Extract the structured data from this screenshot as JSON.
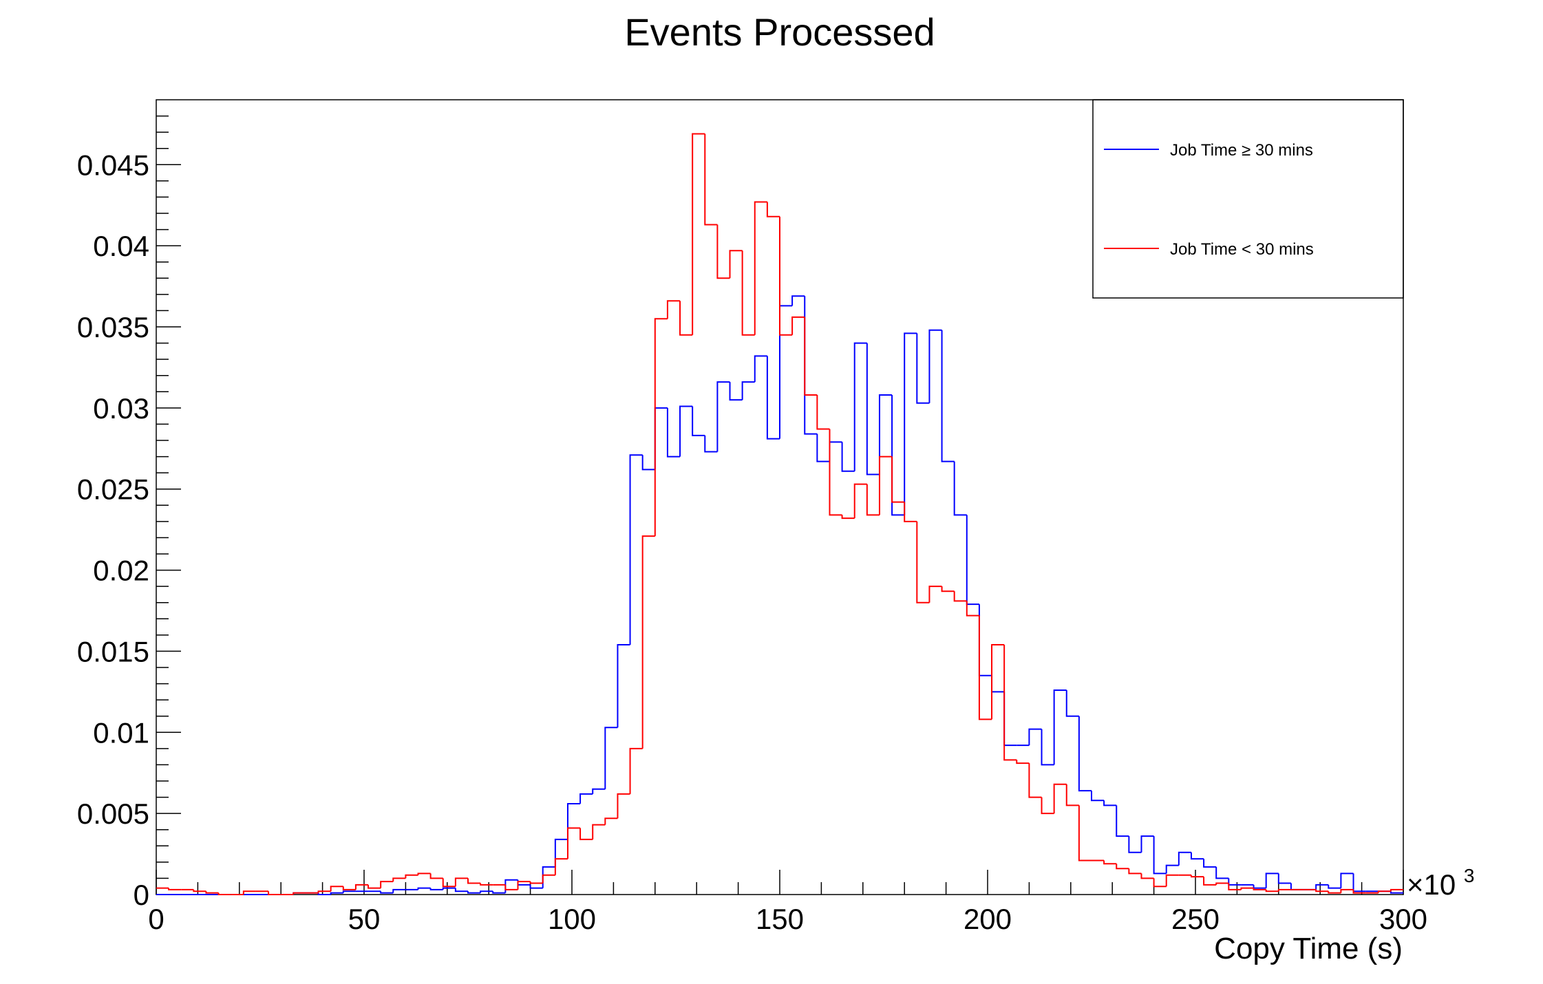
{
  "chart_data": {
    "type": "histogram",
    "title": "Events Processed",
    "xlabel": "Copy Time (s)",
    "ylabel": "",
    "x_multiplier": "×10",
    "x_multiplier_exp": "3",
    "xlim": [
      0,
      300
    ],
    "ylim": [
      0,
      0.049
    ],
    "x_bin_width": 3,
    "x_ticks": [
      "0",
      "50",
      "100",
      "150",
      "200",
      "250",
      "300"
    ],
    "x_tick_values": [
      0,
      50,
      100,
      150,
      200,
      250,
      300
    ],
    "y_ticks": [
      "0",
      "0.005",
      "0.01",
      "0.015",
      "0.02",
      "0.025",
      "0.03",
      "0.035",
      "0.04",
      "0.045"
    ],
    "y_tick_values": [
      0,
      0.005,
      0.01,
      0.015,
      0.02,
      0.025,
      0.03,
      0.035,
      0.04,
      0.045
    ],
    "legend_position": "top-right",
    "grid": false,
    "series": [
      {
        "name": "Job Time ≥ 30 mins",
        "color": "#0000ff",
        "values": [
          0,
          0,
          0,
          0,
          0,
          0,
          0,
          0,
          0,
          0,
          0,
          0.0001,
          0.0001,
          0,
          0.0001,
          0.0002,
          0.0002,
          0.0002,
          0.0001,
          0.0003,
          0.0003,
          0.0004,
          0.0003,
          0.0004,
          0.0002,
          0.0001,
          0.0002,
          0.0001,
          0.0009,
          0.0006,
          0.0004,
          0.0017,
          0.0034,
          0.0056,
          0.0062,
          0.0065,
          0.0103,
          0.0154,
          0.0271,
          0.0262,
          0.03,
          0.027,
          0.0301,
          0.0283,
          0.0273,
          0.0316,
          0.0305,
          0.0316,
          0.0332,
          0.0281,
          0.0363,
          0.0369,
          0.0284,
          0.0267,
          0.0279,
          0.0261,
          0.034,
          0.0259,
          0.0308,
          0.0234,
          0.0346,
          0.0303,
          0.0348,
          0.0267,
          0.0234,
          0.0179,
          0.0135,
          0.0125,
          0.0092,
          0.0092,
          0.0102,
          0.008,
          0.0126,
          0.011,
          0.0064,
          0.0058,
          0.0055,
          0.0036,
          0.0026,
          0.0036,
          0.0013,
          0.0018,
          0.0026,
          0.0022,
          0.0017,
          0.001,
          0.0006,
          0.0006,
          0.0004,
          0.0013,
          0.0007,
          0.0003,
          0.0003,
          0.0006,
          0.0004,
          0.0013,
          0.0002,
          0.0002,
          0.0002,
          0.0001
        ]
      },
      {
        "name": "Job Time < 30 mins",
        "color": "#ff0000",
        "values": [
          0.0004,
          0.0003,
          0.0003,
          0.0002,
          0.0001,
          0,
          0,
          0.0002,
          0.0002,
          0,
          0,
          0.0001,
          0.0001,
          0.0002,
          0.0005,
          0.0003,
          0.0006,
          0.0004,
          0.0008,
          0.001,
          0.0012,
          0.0013,
          0.001,
          0.0005,
          0.001,
          0.0007,
          0.0006,
          0.0006,
          0.0003,
          0.0008,
          0.0007,
          0.0012,
          0.0022,
          0.0041,
          0.0034,
          0.0043,
          0.0047,
          0.0062,
          0.009,
          0.0221,
          0.0355,
          0.0366,
          0.0345,
          0.0469,
          0.0413,
          0.038,
          0.0397,
          0.0345,
          0.0427,
          0.0418,
          0.0345,
          0.0356,
          0.0308,
          0.0287,
          0.0234,
          0.0232,
          0.0253,
          0.0234,
          0.027,
          0.0242,
          0.023,
          0.018,
          0.019,
          0.0187,
          0.0181,
          0.0172,
          0.0108,
          0.0154,
          0.0083,
          0.0081,
          0.006,
          0.005,
          0.0068,
          0.0055,
          0.0021,
          0.0021,
          0.0019,
          0.0016,
          0.0013,
          0.001,
          0.0005,
          0.0012,
          0.0012,
          0.0011,
          0.0006,
          0.0007,
          0.0003,
          0.0004,
          0.0003,
          0.0002,
          0.0003,
          0.0003,
          0.0003,
          0.0002,
          0.0001,
          0.0003,
          0.0001,
          0.0001,
          0.0002,
          0.0003
        ]
      }
    ]
  }
}
